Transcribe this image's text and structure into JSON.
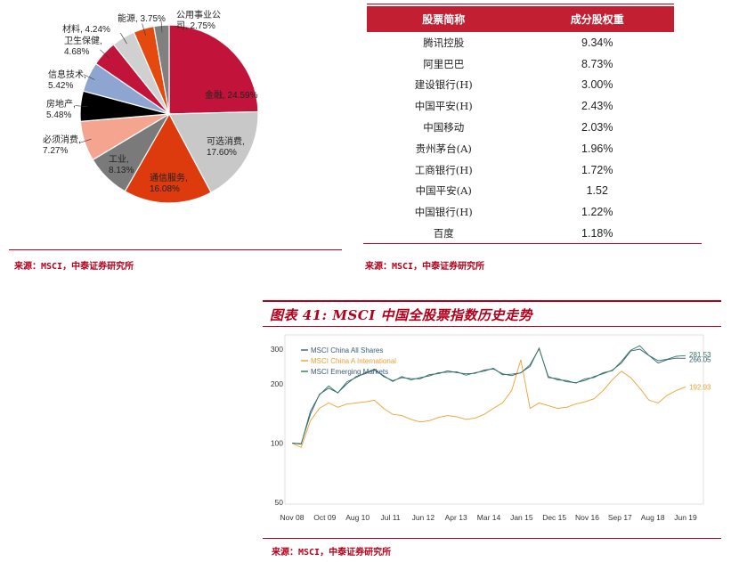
{
  "pie": {
    "source": "来源：MSCI，中泰证券研究所",
    "slices": [
      {
        "name": "金融",
        "label": "金融, 24.59%",
        "value": 24.59,
        "color": "#c2143a"
      },
      {
        "name": "可选消费",
        "label": "可选消费,\n17.60%",
        "value": 17.6,
        "color": "#c8c8c8"
      },
      {
        "name": "通信服务",
        "label": "通信服务,\n16.08%",
        "value": 16.08,
        "color": "#dd3a0e"
      },
      {
        "name": "工业",
        "label": "工业,\n8.13%",
        "value": 8.13,
        "color": "#7a7a7a"
      },
      {
        "name": "必须消费",
        "label": "必须消费,\n7.27%",
        "value": 7.27,
        "color": "#f5a58f"
      },
      {
        "name": "房地产",
        "label": "房地产,\n5.48%",
        "value": 5.48,
        "color": "#000000"
      },
      {
        "name": "信息技术",
        "label": "信息技术,\n5.42%",
        "value": 5.42,
        "color": "#8ea5d2"
      },
      {
        "name": "卫生保健",
        "label": "卫生保健,\n4.68%",
        "value": 4.68,
        "color": "#c2143a"
      },
      {
        "name": "材料",
        "label": "材料, 4.24%",
        "value": 4.24,
        "color": "#d0d0d0"
      },
      {
        "name": "能源",
        "label": "能源, 3.75%",
        "value": 3.75,
        "color": "#e44a10"
      },
      {
        "name": "公用事业公司",
        "label": "公用事业公\n司, 2.75%",
        "value": 2.75,
        "color": "#808080"
      }
    ]
  },
  "table": {
    "source": "来源：MSCI，中泰证券研究所",
    "headers": [
      "股票简称",
      "成分股权重"
    ],
    "rows": [
      [
        "腾讯控股",
        "9.34%"
      ],
      [
        "阿里巴巴",
        "8.73%"
      ],
      [
        "建设银行(H)",
        "3.00%"
      ],
      [
        "中国平安(H)",
        "2.43%"
      ],
      [
        "中国移动",
        "2.03%"
      ],
      [
        "贵州茅台(A)",
        "1.96%"
      ],
      [
        "工商银行(H)",
        "1.72%"
      ],
      [
        "中国平安(A)",
        "1.52"
      ],
      [
        "中国银行(H)",
        "1.22%"
      ],
      [
        "百度",
        "1.18%"
      ]
    ]
  },
  "figure": {
    "title": "图表 41:  MSCI 中国全股票指数历史走势",
    "source": "来源：MSCI，中泰证券研究所"
  },
  "chart_data": {
    "type": "line",
    "title": "",
    "yscale": "log",
    "yticks": [
      50,
      100,
      200,
      300
    ],
    "ylim": [
      50,
      340
    ],
    "xticks": [
      "Nov 08",
      "Oct 09",
      "Aug 10",
      "Jul 11",
      "Jun 12",
      "Apr 13",
      "Mar 14",
      "Jan 15",
      "Dec 15",
      "Nov 16",
      "Sep 17",
      "Aug 18",
      "Jun 19"
    ],
    "legend_position": "top-left",
    "series": [
      {
        "name": "MSCI China All Shares",
        "color": "#3b5a7a",
        "end_label": "266.05",
        "values": [
          100,
          98,
          140,
          175,
          190,
          178,
          200,
          215,
          225,
          235,
          218,
          205,
          215,
          210,
          212,
          220,
          225,
          230,
          228,
          222,
          226,
          232,
          238,
          222,
          220,
          225,
          245,
          300,
          215,
          210,
          205,
          200,
          208,
          215,
          225,
          232,
          255,
          290,
          300,
          275,
          255,
          262,
          270,
          266.05
        ]
      },
      {
        "name": "MSCI China A International",
        "color": "#f0a030",
        "end_label": "192.93",
        "values": [
          100,
          95,
          130,
          150,
          160,
          152,
          158,
          160,
          162,
          165,
          150,
          140,
          138,
          132,
          128,
          130,
          135,
          138,
          136,
          132,
          134,
          140,
          150,
          160,
          185,
          265,
          150,
          160,
          155,
          150,
          152,
          158,
          162,
          168,
          185,
          210,
          232,
          215,
          190,
          165,
          160,
          175,
          185,
          192.93
        ]
      },
      {
        "name": "MSCI Emerging Markets",
        "color": "#2e7a5a",
        "end_label": "281.53",
        "values": [
          100,
          100,
          145,
          178,
          195,
          182,
          205,
          218,
          228,
          238,
          220,
          208,
          218,
          212,
          215,
          222,
          228,
          232,
          230,
          224,
          228,
          235,
          240,
          225,
          224,
          230,
          250,
          305,
          218,
          212,
          208,
          204,
          212,
          218,
          228,
          236,
          260,
          300,
          312,
          282,
          262,
          270,
          276,
          281.53
        ]
      }
    ]
  }
}
